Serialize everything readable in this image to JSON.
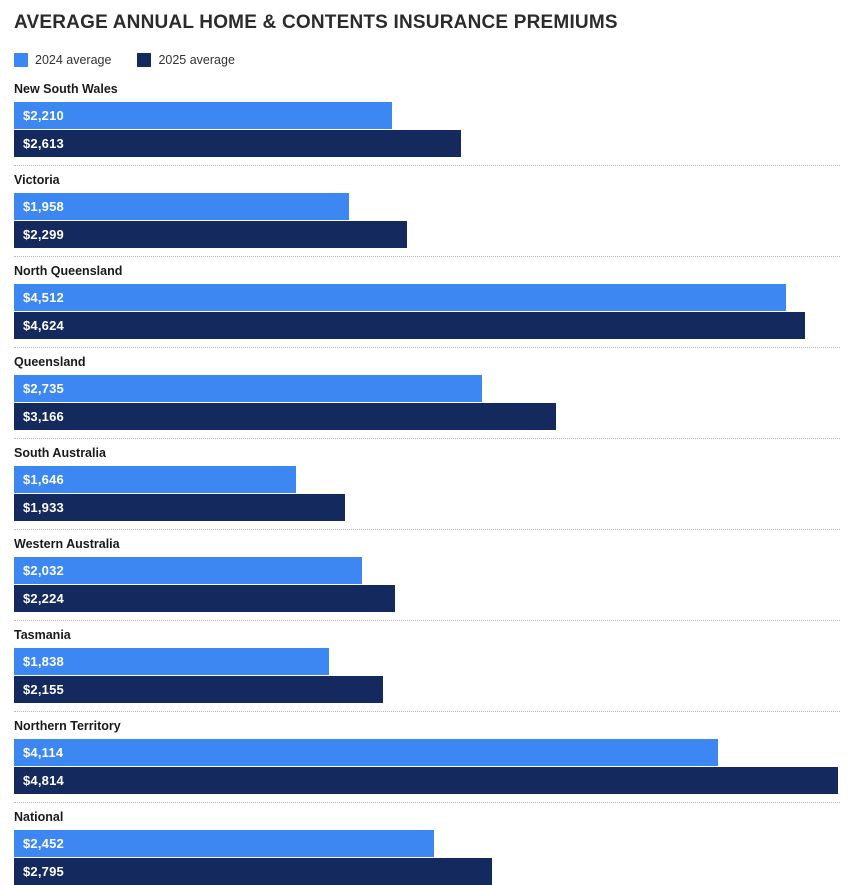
{
  "title": "AVERAGE ANNUAL HOME & CONTENTS INSURANCE PREMIUMS",
  "legend": [
    {
      "label": "2024 average",
      "color": "#3d87f2"
    },
    {
      "label": "2025 average",
      "color": "#14295e"
    }
  ],
  "colors": {
    "bar_2024": "#3d87f2",
    "bar_2025": "#14295e",
    "separator": "#b8b8b8",
    "title_text": "#2b2b2b",
    "bar_value_text": "#ffffff"
  },
  "chart_data": {
    "type": "bar",
    "orientation": "horizontal",
    "title": "AVERAGE ANNUAL HOME & CONTENTS INSURANCE PREMIUMS",
    "xlabel": "",
    "ylabel": "",
    "xlim": [
      0,
      4826
    ],
    "grid": false,
    "legend_position": "top-left",
    "value_label_position": "inside-left",
    "categories": [
      "New South Wales",
      "Victoria",
      "North Queensland",
      "Queensland",
      "South Australia",
      "Western Australia",
      "Tasmania",
      "Northern Territory",
      "National"
    ],
    "series": [
      {
        "name": "2024 average",
        "color": "#3d87f2",
        "values": [
          2210,
          1958,
          4512,
          2735,
          1646,
          2032,
          1838,
          4114,
          2452
        ],
        "labels": [
          "$2,210",
          "$1,958",
          "$4,512",
          "$2,735",
          "$1,646",
          "$2,032",
          "$1,838",
          "$4,114",
          "$2,452"
        ]
      },
      {
        "name": "2025 average",
        "color": "#14295e",
        "values": [
          2613,
          2299,
          4624,
          3166,
          1933,
          2224,
          2155,
          4814,
          2795
        ],
        "labels": [
          "$2,613",
          "$2,299",
          "$4,624",
          "$3,166",
          "$1,933",
          "$2,224",
          "$2,155",
          "$4,814",
          "$2,795"
        ]
      }
    ]
  }
}
